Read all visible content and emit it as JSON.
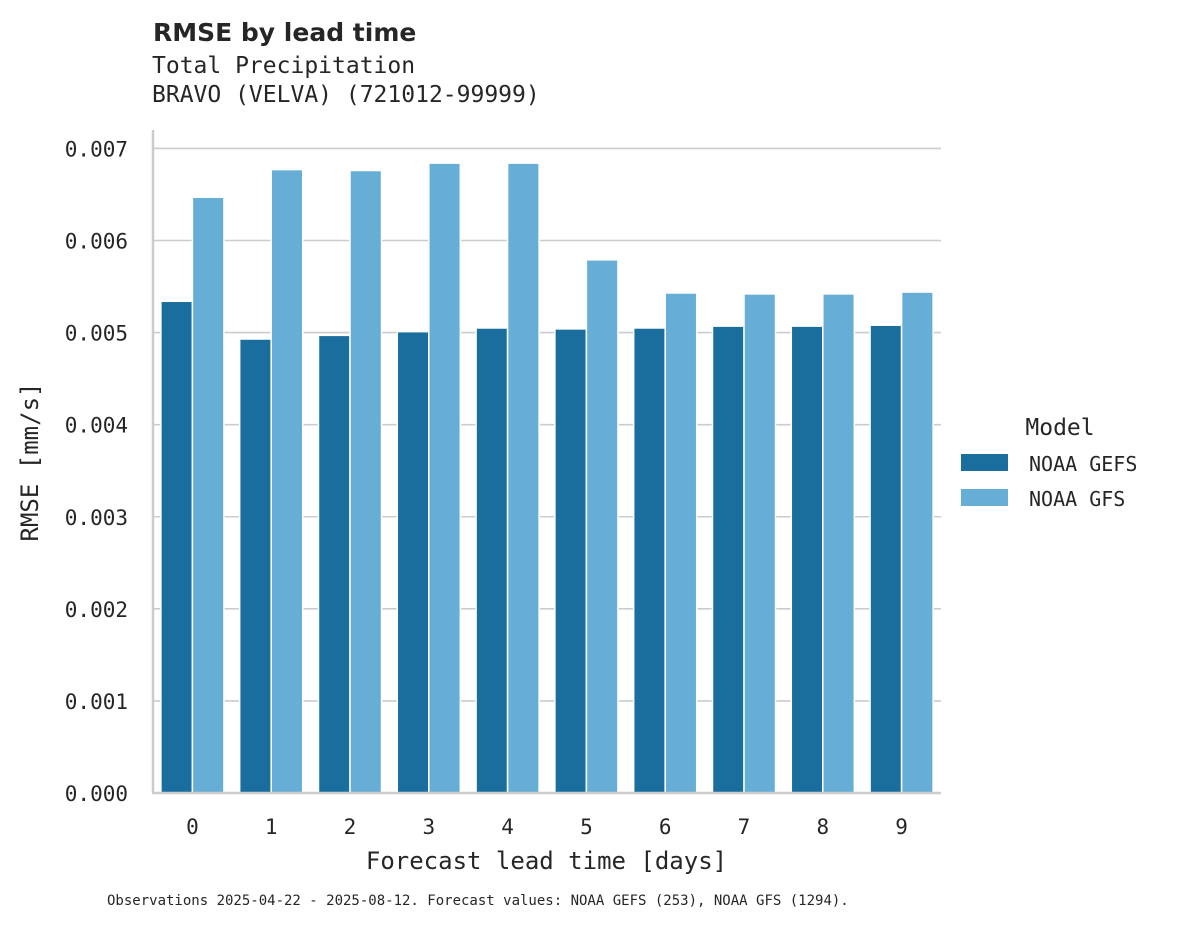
{
  "chart_data": {
    "type": "bar",
    "title": "RMSE by lead time",
    "subtitle_lines": [
      "Total Precipitation",
      "BRAVO (VELVA) (721012-99999)"
    ],
    "xlabel": "Forecast lead time [days]",
    "ylabel": "RMSE [mm/s]",
    "categories": [
      "0",
      "1",
      "2",
      "3",
      "4",
      "5",
      "6",
      "7",
      "8",
      "9"
    ],
    "ylim": [
      0,
      0.0072
    ],
    "yticks": [
      0.0,
      0.001,
      0.002,
      0.003,
      0.004,
      0.005,
      0.006,
      0.007
    ],
    "ytick_labels": [
      "0.000",
      "0.001",
      "0.002",
      "0.003",
      "0.004",
      "0.005",
      "0.006",
      "0.007"
    ],
    "grid": true,
    "legend": {
      "title": "Model",
      "placement": "right"
    },
    "series": [
      {
        "name": "NOAA GEFS",
        "color": "#1a6e9e",
        "values": [
          0.00534,
          0.00493,
          0.00497,
          0.00501,
          0.00505,
          0.00504,
          0.00505,
          0.00507,
          0.00507,
          0.00508
        ]
      },
      {
        "name": "NOAA GFS",
        "color": "#66aed6",
        "values": [
          0.00647,
          0.00677,
          0.00676,
          0.00684,
          0.00684,
          0.00579,
          0.00543,
          0.00542,
          0.00542,
          0.00544
        ]
      }
    ],
    "footnote": "Observations 2025-04-22 - 2025-08-12. Forecast values: NOAA GEFS (253), NOAA GFS (1294)."
  }
}
